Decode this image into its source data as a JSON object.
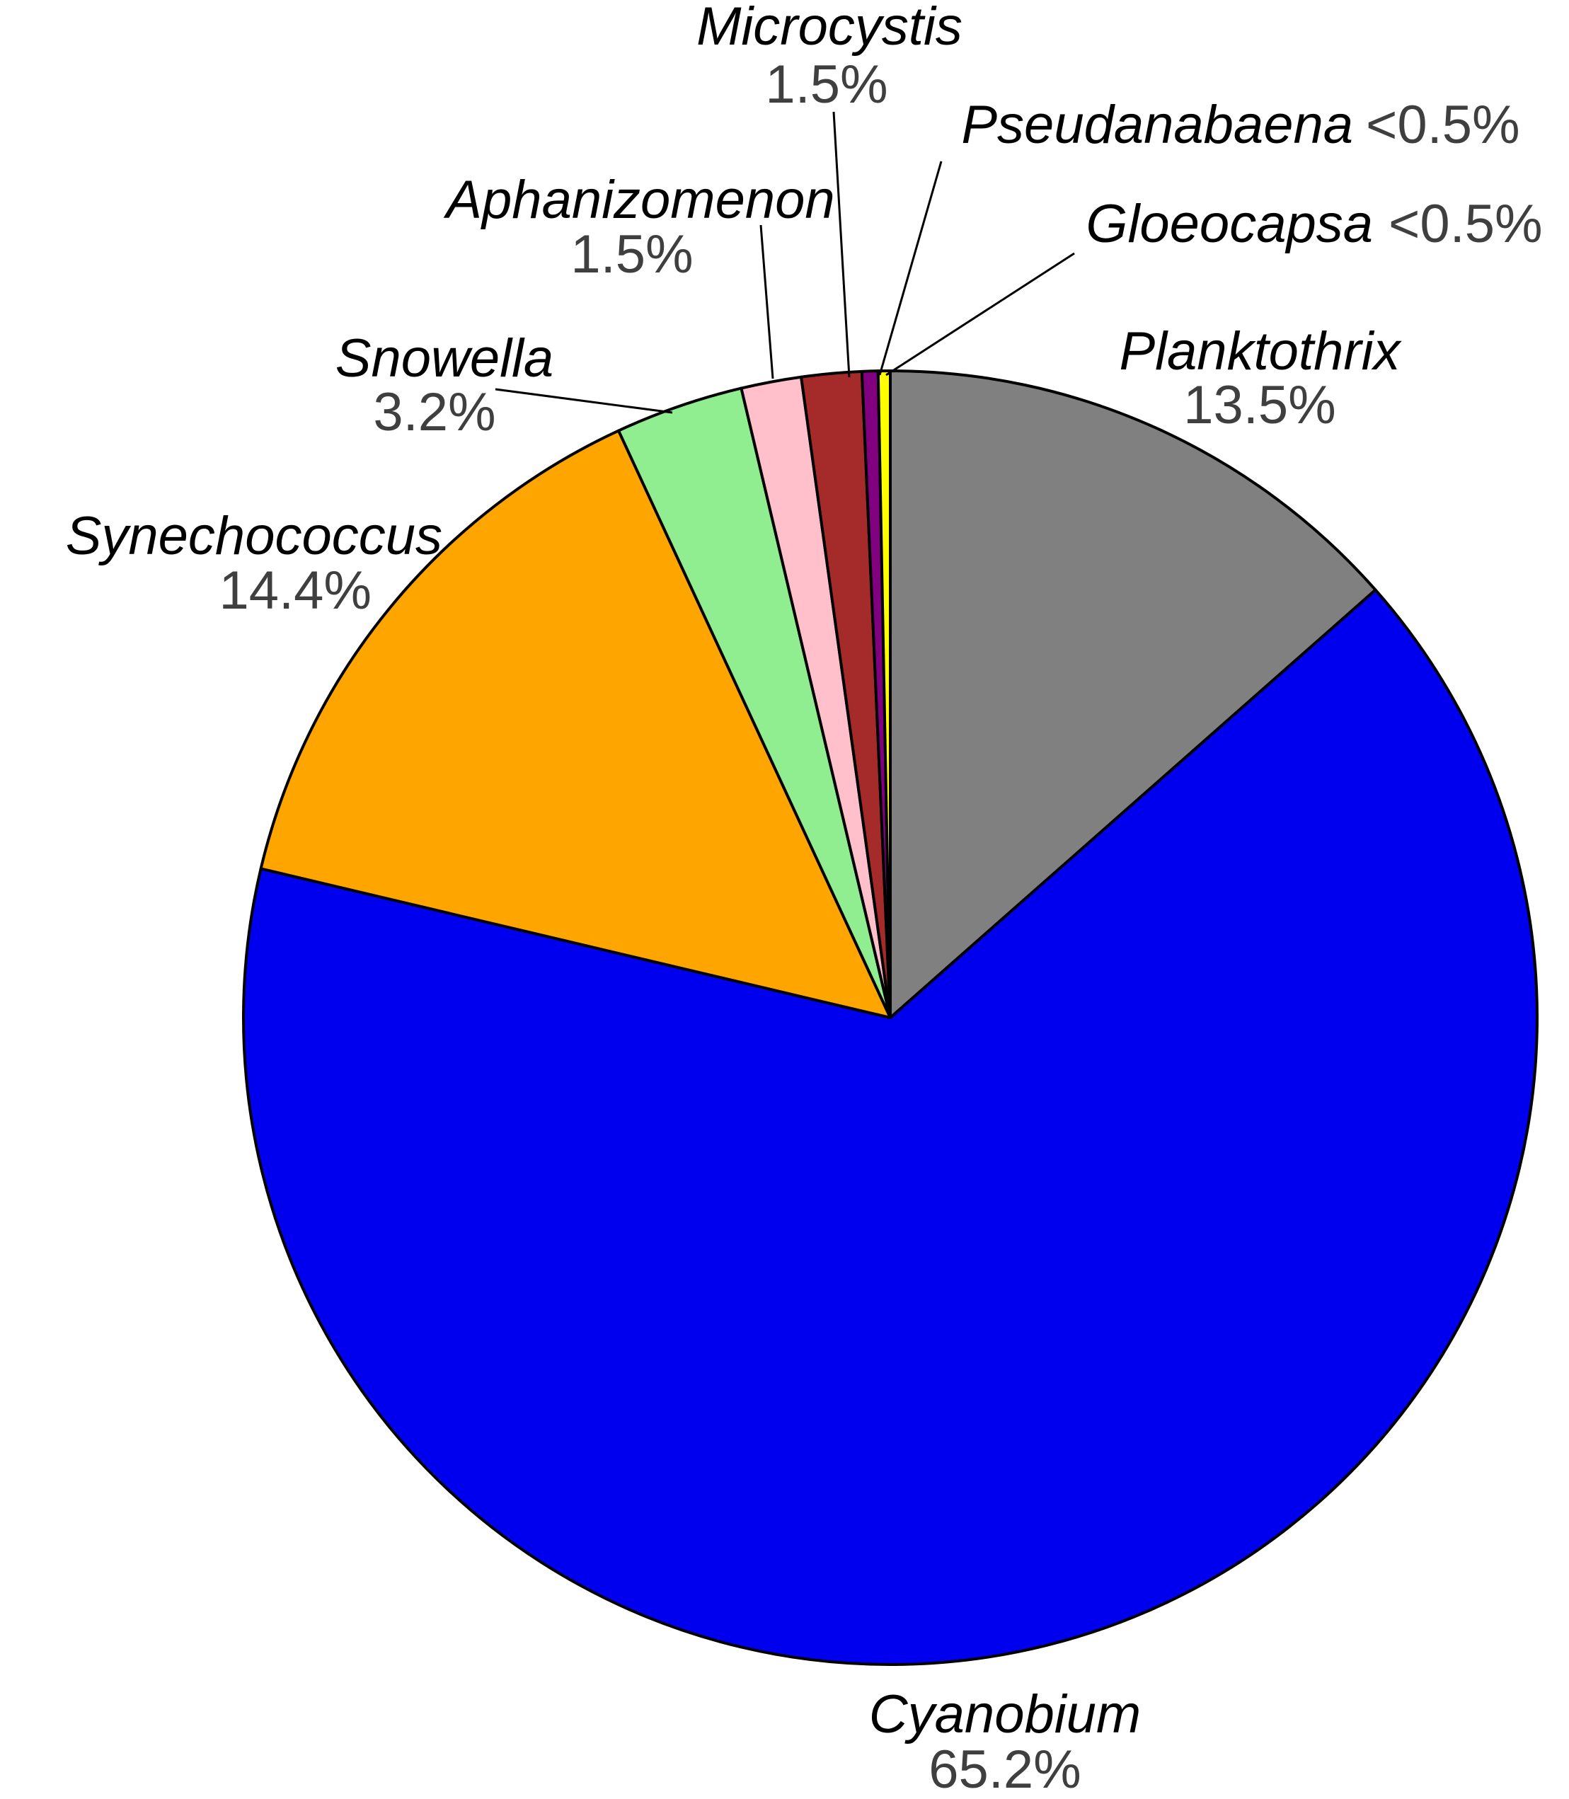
{
  "chart_data": {
    "type": "pie",
    "start_angle_deg": 0,
    "direction": "clockwise",
    "slices": [
      {
        "name": "Planktothrix",
        "value": 13.5,
        "label": "13.5%",
        "color": "#808080"
      },
      {
        "name": "Cyanobium",
        "value": 65.2,
        "label": "65.2%",
        "color": "#0000ee"
      },
      {
        "name": "Synechococcus",
        "value": 14.4,
        "label": "14.4%",
        "color": "#ffa500"
      },
      {
        "name": "Snowella",
        "value": 3.2,
        "label": "3.2%",
        "color": "#90ee90"
      },
      {
        "name": "Aphanizomenon",
        "value": 1.5,
        "label": "1.5%",
        "color": "#ffc0cb"
      },
      {
        "name": "Microcystis",
        "value": 1.5,
        "label": "1.5%",
        "color": "#a52a2a"
      },
      {
        "name": "Pseudanabaena",
        "value": 0.4,
        "label": "<0.5%",
        "color": "#800080"
      },
      {
        "name": "Gloeocapsa",
        "value": 0.3,
        "label": "<0.5%",
        "color": "#ffff00"
      }
    ]
  }
}
